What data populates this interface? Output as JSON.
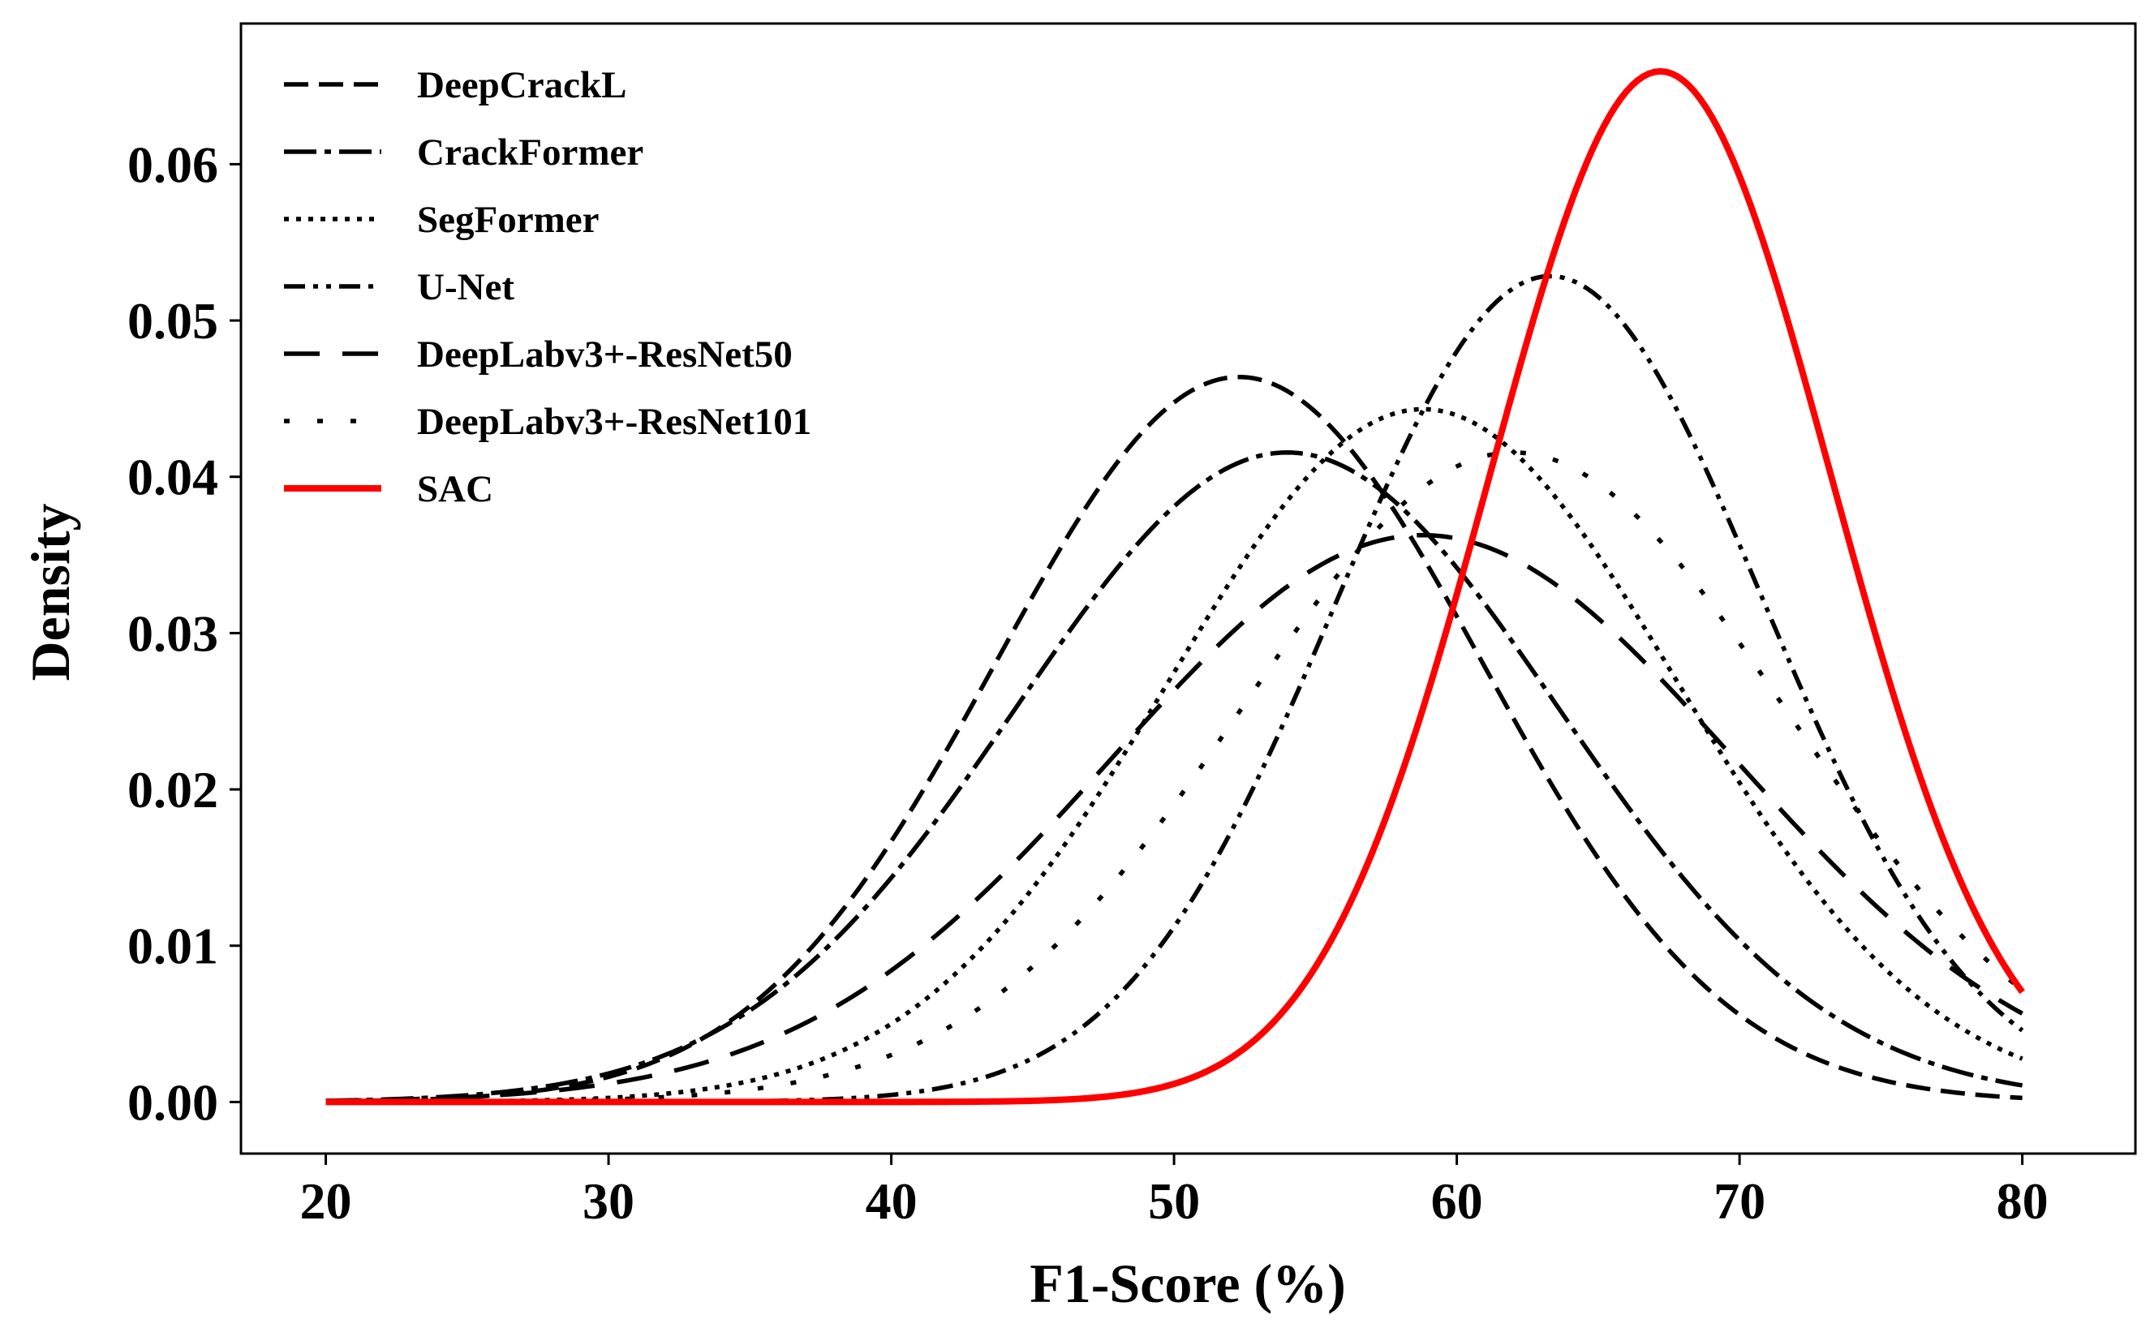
{
  "chart_data": {
    "type": "line",
    "title": "",
    "xlabel": "F1-Score (%)",
    "ylabel": "Density",
    "xlim": [
      17,
      84
    ],
    "ylim": [
      -0.0033,
      0.069
    ],
    "xticks": [
      20,
      30,
      40,
      50,
      60,
      70,
      80
    ],
    "xtick_labels": [
      "20",
      "30",
      "40",
      "50",
      "60",
      "70",
      "80"
    ],
    "yticks": [
      0.0,
      0.01,
      0.02,
      0.03,
      0.04,
      0.05,
      0.06
    ],
    "ytick_labels": [
      "0.00",
      "0.01",
      "0.02",
      "0.03",
      "0.04",
      "0.05",
      "0.06"
    ],
    "grid": false,
    "legend_position": "top-left",
    "x_range": [
      20,
      80
    ],
    "series": [
      {
        "name": "DeepCrackL",
        "distribution": "normal",
        "mean": 52.3,
        "std": 8.6,
        "color": "#000000",
        "style": "dashed"
      },
      {
        "name": "CrackFormer",
        "distribution": "normal",
        "mean": 54.0,
        "std": 9.6,
        "color": "#000000",
        "style": "long-dash-dot"
      },
      {
        "name": "SegFormer",
        "distribution": "normal",
        "mean": 58.8,
        "std": 9.0,
        "color": "#000000",
        "style": "dotted"
      },
      {
        "name": "U-Net",
        "distribution": "normal",
        "mean": 63.3,
        "std": 7.55,
        "color": "#000000",
        "style": "dash-dot-dot"
      },
      {
        "name": "DeepLabv3+-ResNet50",
        "distribution": "normal",
        "mean": 58.8,
        "std": 11.0,
        "color": "#000000",
        "style": "loosely-dashed"
      },
      {
        "name": "DeepLabv3+-ResNet101",
        "distribution": "normal",
        "mean": 62.0,
        "std": 9.6,
        "color": "#000000",
        "style": "loosely-dotted"
      },
      {
        "name": "SAC",
        "distribution": "normal",
        "mean": 67.2,
        "std": 6.05,
        "color": "#ff0000",
        "style": "solid"
      }
    ]
  }
}
